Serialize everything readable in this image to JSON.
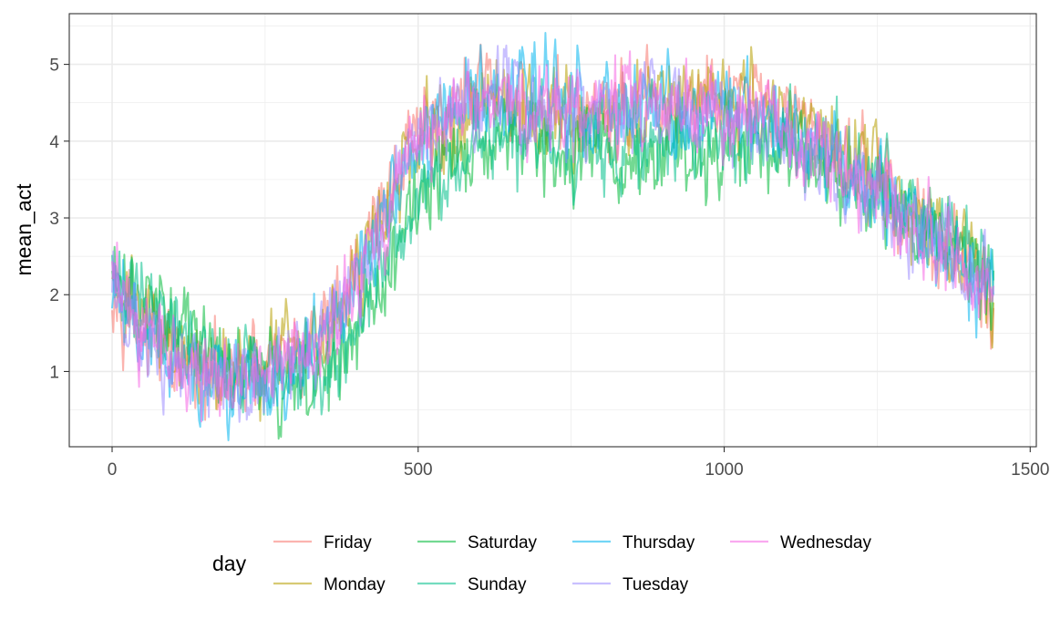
{
  "chart_data": {
    "type": "line",
    "title": "",
    "xlabel": "",
    "ylabel": "mean_act",
    "xlim": [
      -70,
      1510
    ],
    "ylim": [
      0.02,
      5.66
    ],
    "x_ticks": [
      0,
      500,
      1000,
      1500
    ],
    "x_tick_labels": [
      "0",
      "500",
      "1000",
      "1500"
    ],
    "y_ticks": [
      1,
      2,
      3,
      4,
      5
    ],
    "y_tick_labels": [
      "1",
      "2",
      "3",
      "4",
      "5"
    ],
    "x_minor_ticks": [
      250,
      750,
      1250
    ],
    "y_minor_ticks": [
      0.5,
      1.5,
      2.5,
      3.5,
      4.5,
      5.5
    ],
    "grid": true,
    "x_sampled": [
      0,
      20,
      40,
      60,
      80,
      100,
      120,
      140,
      160,
      180,
      200,
      220,
      240,
      260,
      280,
      300,
      320,
      340,
      360,
      380,
      400,
      420,
      440,
      460,
      480,
      500,
      520,
      540,
      560,
      580,
      600,
      620,
      640,
      660,
      680,
      700,
      720,
      740,
      760,
      780,
      800,
      820,
      840,
      860,
      880,
      900,
      920,
      940,
      960,
      980,
      1000,
      1020,
      1040,
      1060,
      1080,
      1100,
      1120,
      1140,
      1160,
      1180,
      1200,
      1220,
      1240,
      1260,
      1280,
      1300,
      1320,
      1340,
      1360,
      1380,
      1400,
      1420,
      1440
    ],
    "series": [
      {
        "name": "Friday",
        "color": "#F8766D",
        "values": [
          2.3,
          2.0,
          1.7,
          1.4,
          1.3,
          1.1,
          1.0,
          0.95,
          0.9,
          0.85,
          0.85,
          0.9,
          0.9,
          1.0,
          1.1,
          1.2,
          1.3,
          1.5,
          1.7,
          2.0,
          2.4,
          2.8,
          3.2,
          3.5,
          3.8,
          4.0,
          4.2,
          4.3,
          4.5,
          4.6,
          4.6,
          4.6,
          4.6,
          4.5,
          4.5,
          4.4,
          4.4,
          4.4,
          4.3,
          4.3,
          4.3,
          4.4,
          4.4,
          4.4,
          4.4,
          4.4,
          4.4,
          4.5,
          4.5,
          4.5,
          4.5,
          4.5,
          4.5,
          4.4,
          4.4,
          4.3,
          4.2,
          4.1,
          4.0,
          3.9,
          3.8,
          3.7,
          3.6,
          3.4,
          3.3,
          3.1,
          2.9,
          2.7,
          2.6,
          2.5,
          2.3,
          2.1,
          1.8
        ]
      },
      {
        "name": "Monday",
        "color": "#B79F00",
        "values": [
          2.4,
          2.1,
          1.9,
          1.6,
          1.5,
          1.3,
          1.2,
          1.1,
          1.05,
          1.0,
          1.0,
          1.05,
          1.1,
          1.2,
          1.3,
          1.4,
          1.5,
          1.6,
          1.7,
          1.9,
          2.2,
          2.6,
          3.0,
          3.3,
          3.6,
          3.8,
          4.0,
          4.2,
          4.3,
          4.4,
          4.5,
          4.5,
          4.5,
          4.5,
          4.4,
          4.4,
          4.4,
          4.3,
          4.3,
          4.3,
          4.3,
          4.3,
          4.4,
          4.4,
          4.4,
          4.5,
          4.5,
          4.5,
          4.6,
          4.6,
          4.6,
          4.6,
          4.6,
          4.5,
          4.4,
          4.3,
          4.2,
          4.1,
          4.0,
          3.9,
          3.8,
          3.7,
          3.6,
          3.5,
          3.3,
          3.1,
          2.9,
          2.8,
          2.7,
          2.6,
          2.4,
          2.1,
          1.8
        ]
      },
      {
        "name": "Saturday",
        "color": "#00BA38",
        "values": [
          2.2,
          2.0,
          1.9,
          1.8,
          1.7,
          1.6,
          1.5,
          1.4,
          1.3,
          1.2,
          1.1,
          1.05,
          1.0,
          0.95,
          0.9,
          0.9,
          0.9,
          0.95,
          1.0,
          1.2,
          1.5,
          1.8,
          2.2,
          2.6,
          2.9,
          3.2,
          3.4,
          3.6,
          3.7,
          3.8,
          3.9,
          4.0,
          4.0,
          4.0,
          4.0,
          4.0,
          4.0,
          3.9,
          3.9,
          3.9,
          3.9,
          3.9,
          3.9,
          3.9,
          3.9,
          3.9,
          3.9,
          3.9,
          3.9,
          3.9,
          3.9,
          3.9,
          3.9,
          3.9,
          3.9,
          3.9,
          3.8,
          3.8,
          3.7,
          3.6,
          3.6,
          3.5,
          3.4,
          3.3,
          3.2,
          3.1,
          3.0,
          2.9,
          2.8,
          2.7,
          2.5,
          2.3,
          2.0
        ]
      },
      {
        "name": "Sunday",
        "color": "#00C08B",
        "values": [
          2.1,
          1.9,
          1.8,
          1.7,
          1.6,
          1.5,
          1.4,
          1.3,
          1.2,
          1.1,
          1.0,
          0.95,
          0.9,
          0.85,
          0.85,
          0.85,
          0.9,
          1.0,
          1.1,
          1.3,
          1.6,
          1.9,
          2.3,
          2.6,
          2.9,
          3.2,
          3.4,
          3.6,
          3.8,
          3.9,
          4.0,
          4.1,
          4.1,
          4.1,
          4.1,
          4.1,
          4.0,
          4.0,
          4.0,
          4.0,
          4.0,
          4.0,
          4.0,
          4.0,
          4.0,
          4.0,
          4.0,
          4.0,
          4.0,
          4.0,
          4.0,
          4.0,
          4.0,
          4.0,
          4.0,
          4.0,
          3.9,
          3.9,
          3.8,
          3.7,
          3.7,
          3.6,
          3.5,
          3.4,
          3.3,
          3.2,
          3.1,
          3.0,
          2.9,
          2.8,
          2.6,
          2.4,
          2.1
        ]
      },
      {
        "name": "Thursday",
        "color": "#00B4EF",
        "values": [
          2.2,
          1.7,
          1.5,
          1.3,
          1.2,
          1.1,
          1.0,
          0.95,
          0.9,
          0.85,
          0.85,
          0.9,
          0.9,
          1.0,
          1.1,
          1.2,
          1.3,
          1.5,
          1.7,
          1.9,
          2.2,
          2.6,
          3.0,
          3.3,
          3.6,
          3.9,
          4.1,
          4.3,
          4.4,
          4.5,
          4.6,
          4.6,
          4.6,
          4.6,
          4.6,
          4.6,
          4.6,
          4.6,
          4.6,
          4.5,
          4.5,
          4.5,
          4.4,
          4.4,
          4.4,
          4.4,
          4.4,
          4.4,
          4.4,
          4.4,
          4.4,
          4.4,
          4.3,
          4.3,
          4.2,
          4.1,
          4.0,
          3.9,
          3.8,
          3.7,
          3.6,
          3.5,
          3.4,
          3.3,
          3.2,
          3.0,
          2.9,
          2.7,
          2.6,
          2.5,
          2.3,
          2.1,
          1.8
        ]
      },
      {
        "name": "Tuesday",
        "color": "#9C8DFF",
        "values": [
          2.1,
          1.8,
          1.6,
          1.4,
          1.3,
          1.1,
          1.0,
          0.95,
          0.9,
          0.85,
          0.85,
          0.9,
          0.9,
          1.0,
          1.1,
          1.2,
          1.3,
          1.5,
          1.7,
          1.9,
          2.2,
          2.6,
          3.0,
          3.3,
          3.6,
          3.9,
          4.1,
          4.3,
          4.4,
          4.5,
          4.5,
          4.5,
          4.5,
          4.5,
          4.5,
          4.4,
          4.4,
          4.4,
          4.4,
          4.4,
          4.4,
          4.4,
          4.4,
          4.4,
          4.4,
          4.4,
          4.4,
          4.4,
          4.4,
          4.4,
          4.4,
          4.4,
          4.3,
          4.3,
          4.2,
          4.1,
          4.0,
          3.9,
          3.8,
          3.7,
          3.6,
          3.5,
          3.4,
          3.3,
          3.2,
          3.0,
          2.9,
          2.7,
          2.6,
          2.5,
          2.3,
          2.1,
          1.8
        ]
      },
      {
        "name": "Wednesday",
        "color": "#F564E3",
        "values": [
          2.2,
          1.8,
          1.6,
          1.4,
          1.3,
          1.1,
          1.0,
          0.95,
          0.9,
          0.85,
          0.85,
          0.9,
          0.9,
          1.0,
          1.1,
          1.2,
          1.3,
          1.5,
          1.7,
          1.9,
          2.2,
          2.6,
          3.0,
          3.3,
          3.6,
          3.9,
          4.1,
          4.3,
          4.4,
          4.5,
          4.5,
          4.5,
          4.5,
          4.5,
          4.5,
          4.4,
          4.4,
          4.4,
          4.4,
          4.4,
          4.4,
          4.4,
          4.4,
          4.4,
          4.4,
          4.4,
          4.4,
          4.4,
          4.4,
          4.4,
          4.4,
          4.4,
          4.3,
          4.3,
          4.2,
          4.1,
          4.0,
          3.9,
          3.8,
          3.7,
          3.6,
          3.5,
          3.4,
          3.3,
          3.2,
          3.0,
          2.9,
          2.7,
          2.6,
          2.5,
          2.3,
          2.1,
          1.9
        ]
      }
    ],
    "legend": {
      "title": "day",
      "position": "bottom",
      "entries": [
        "Friday",
        "Monday",
        "Saturday",
        "Sunday",
        "Thursday",
        "Tuesday",
        "Wednesday"
      ]
    }
  }
}
